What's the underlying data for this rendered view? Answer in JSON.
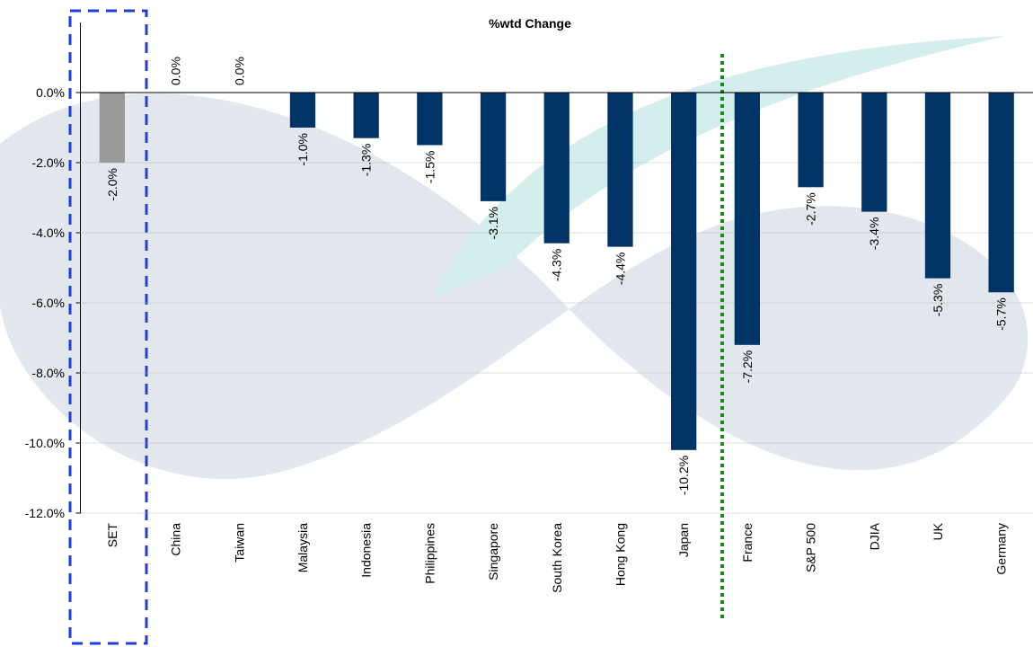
{
  "chart_data": {
    "type": "bar",
    "title": "%wtd Change",
    "categories": [
      "SET",
      "China",
      "Taiwan",
      "Malaysia",
      "Indonesia",
      "Philippines",
      "Singapore",
      "South Korea",
      "Hong Kong",
      "Japan",
      "France",
      "S&P 500",
      "DJIA",
      "UK",
      "Germany"
    ],
    "values": [
      -2.0,
      0.0,
      0.0,
      -1.0,
      -1.3,
      -1.5,
      -3.1,
      -4.3,
      -4.4,
      -10.2,
      -7.2,
      -2.7,
      -3.4,
      -5.3,
      -5.7
    ],
    "value_labels": [
      "-2.0%",
      "0.0%",
      "0.0%",
      "-1.0%",
      "-1.3%",
      "-1.5%",
      "-3.1%",
      "-4.3%",
      "-4.4%",
      "-10.2%",
      "-7.2%",
      "-2.7%",
      "-3.4%",
      "-5.3%",
      "-5.7%"
    ],
    "colors": [
      "#999999",
      "#003366",
      "#003366",
      "#003366",
      "#003366",
      "#003366",
      "#003366",
      "#003366",
      "#003366",
      "#003366",
      "#003366",
      "#003366",
      "#003366",
      "#003366",
      "#003366"
    ],
    "ylim": [
      -12,
      2
    ],
    "yticks": [
      {
        "value": 0,
        "label": "0.0%"
      },
      {
        "value": -2,
        "label": "-2.0%"
      },
      {
        "value": -4,
        "label": "-4.0%"
      },
      {
        "value": -6,
        "label": "-6.0%"
      },
      {
        "value": -8,
        "label": "-8.0%"
      },
      {
        "value": -10,
        "label": "-10.0%"
      },
      {
        "value": -12,
        "label": "-12.0%"
      }
    ],
    "grid": true
  }
}
